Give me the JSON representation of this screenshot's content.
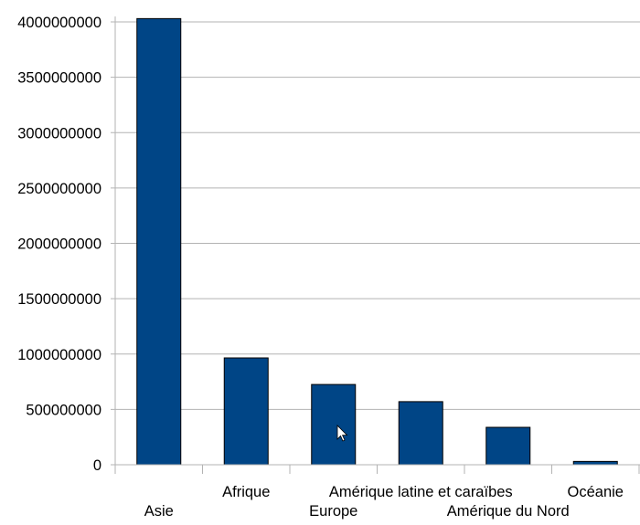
{
  "chart_data": {
    "type": "bar",
    "categories": [
      "Asie",
      "Afrique",
      "Europe",
      "Amérique latine et caraïbes",
      "Amérique du Nord",
      "Océanie"
    ],
    "values": [
      4030000000,
      965000000,
      725000000,
      570000000,
      338000000,
      30000000
    ],
    "ylim": [
      0,
      4000000000
    ],
    "yticks": [
      0,
      500000000,
      1000000000,
      1500000000,
      2000000000,
      2500000000,
      3000000000,
      3500000000,
      4000000000
    ],
    "ytick_labels": [
      "0",
      "500000000",
      "1000000000",
      "1500000000",
      "2000000000",
      "2500000000",
      "3000000000",
      "3500000000",
      "4000000000"
    ],
    "bar_color": "#004586",
    "grid": true,
    "legend": "none"
  }
}
